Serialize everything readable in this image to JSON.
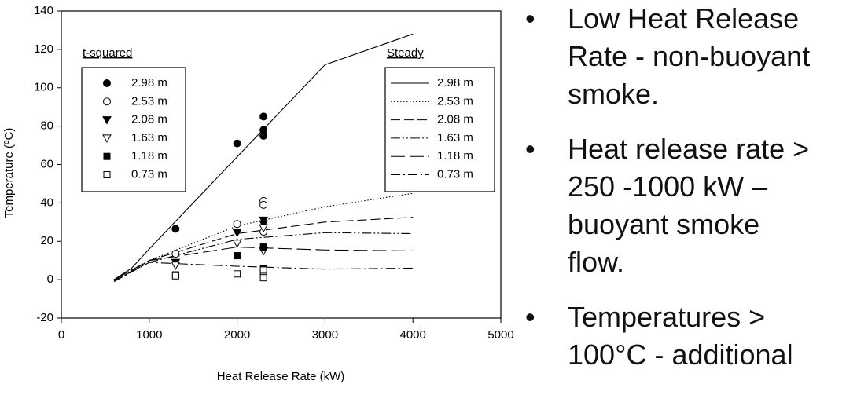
{
  "chart_data": {
    "type": "scatter",
    "x_label": "Heat Release Rate (kW)",
    "y_label": "Temperature (ºC)",
    "xlim": [
      0,
      5000
    ],
    "xticks": [
      0,
      1000,
      2000,
      3000,
      4000,
      5000
    ],
    "ylim": [
      -20,
      140
    ],
    "yticks": [
      -20,
      0,
      20,
      40,
      60,
      80,
      100,
      120,
      140
    ],
    "grid": false,
    "color": "#000000",
    "t_squared": {
      "title": "t-squared",
      "series": [
        {
          "name": "2.98 m",
          "marker": "circle",
          "x": [
            1300,
            2000,
            2300,
            2300,
            2300
          ],
          "values": [
            26.5,
            71,
            85,
            78,
            75
          ]
        },
        {
          "name": "2.53 m",
          "marker": "circle-open",
          "x": [
            1300,
            2000,
            2300,
            2300,
            2300
          ],
          "values": [
            13.5,
            29,
            41,
            39,
            25
          ]
        },
        {
          "name": "2.08 m",
          "marker": "triangle-down",
          "x": [
            1300,
            2000,
            2300,
            2300
          ],
          "values": [
            9,
            24.5,
            31,
            29
          ]
        },
        {
          "name": "1.63 m",
          "marker": "triangle-down-open",
          "x": [
            1300,
            2000,
            2300,
            2300
          ],
          "values": [
            7.5,
            19,
            27,
            15
          ]
        },
        {
          "name": "1.18 m",
          "marker": "square",
          "x": [
            1300,
            2000,
            2300,
            2300
          ],
          "values": [
            2.5,
            12.5,
            17,
            6
          ]
        },
        {
          "name": "0.73 m",
          "marker": "square-open",
          "x": [
            1300,
            2000,
            2300,
            2300,
            2300
          ],
          "values": [
            2,
            3,
            3,
            1,
            5
          ]
        }
      ]
    },
    "steady": {
      "title": "Steady",
      "series": [
        {
          "name": "2.98 m",
          "dash": "solid",
          "x": [
            600,
            800,
            1000,
            2000,
            3000,
            4000
          ],
          "values": [
            0,
            6,
            16,
            64,
            112,
            128
          ]
        },
        {
          "name": "2.53 m",
          "dash": "dotted",
          "x": [
            600,
            1000,
            2000,
            3000,
            4000
          ],
          "values": [
            0,
            10,
            28,
            38,
            45
          ]
        },
        {
          "name": "2.08 m",
          "dash": "dashed",
          "x": [
            600,
            1000,
            2000,
            3000,
            4000
          ],
          "values": [
            -1,
            10,
            24,
            30,
            32.5
          ]
        },
        {
          "name": "1.63 m",
          "dash": "dash-dot-dot",
          "x": [
            600,
            1000,
            2000,
            3000,
            4000
          ],
          "values": [
            -0.5,
            9,
            21,
            24.5,
            24
          ]
        },
        {
          "name": "1.18 m",
          "dash": "long-dash",
          "x": [
            600,
            1000,
            2000,
            3000,
            4000
          ],
          "values": [
            0,
            10,
            17,
            15.5,
            15
          ]
        },
        {
          "name": "0.73 m",
          "dash": "dash-dot",
          "x": [
            600,
            1000,
            2000,
            3000,
            4000
          ],
          "values": [
            -1,
            9,
            7,
            5.5,
            6
          ]
        }
      ]
    }
  },
  "bullets": [
    [
      "Low Heat Release",
      "Rate - non-buoyant",
      "smoke."
    ],
    [
      "Heat release rate >",
      "250 -1000 kW –",
      "buoyant smoke",
      "flow."
    ],
    [
      "Temperatures >",
      "100°C  - additional"
    ]
  ]
}
